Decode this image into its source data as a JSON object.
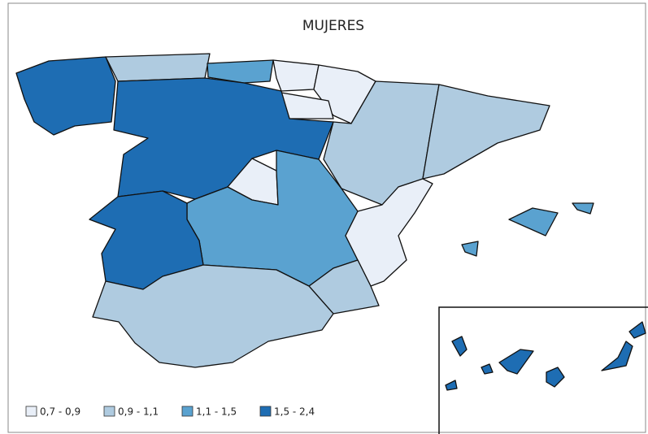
{
  "title": "MUJERES",
  "legend": {
    "items": [
      {
        "label": "0,7 - 0,9",
        "color": "#e9eff8"
      },
      {
        "label": "0,9 - 1,1",
        "color": "#afcbe0"
      },
      {
        "label": "1,1 - 1,5",
        "color": "#5aa2d0"
      },
      {
        "label": "1,5 - 2,4",
        "color": "#1e6db3"
      }
    ]
  }
}
